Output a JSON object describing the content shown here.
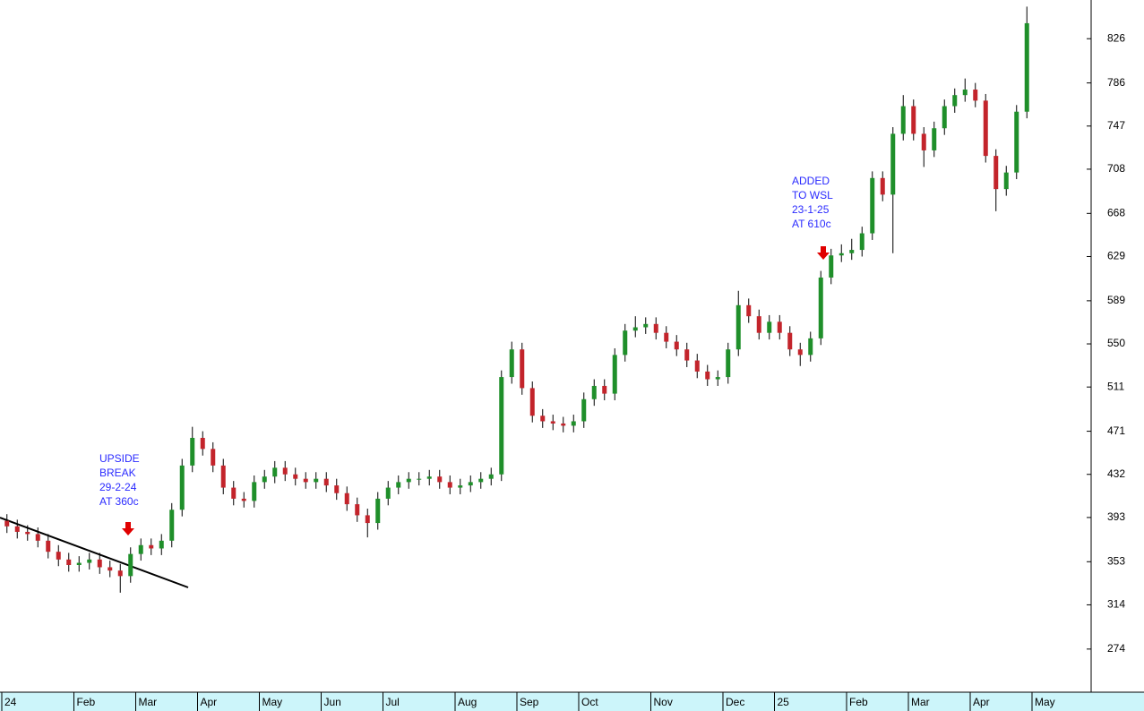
{
  "chart_data": {
    "type": "candlestick",
    "categories": [
      "24",
      null,
      null,
      null,
      null,
      null,
      null,
      "Feb",
      null,
      null,
      null,
      null,
      null,
      "Mar",
      null,
      null,
      null,
      null,
      null,
      "Apr",
      null,
      null,
      null,
      null,
      null,
      "May",
      null,
      null,
      null,
      null,
      null,
      "Jun",
      null,
      null,
      null,
      null,
      null,
      "Jul",
      null,
      null,
      null,
      null,
      null,
      null,
      "Aug",
      null,
      null,
      null,
      null,
      null,
      "Sep",
      null,
      null,
      null,
      null,
      null,
      "Oct",
      null,
      null,
      null,
      null,
      null,
      null,
      "Nov",
      null,
      null,
      null,
      null,
      null,
      null,
      "Dec",
      null,
      null,
      null,
      null,
      "25",
      null,
      null,
      null,
      null,
      null,
      null,
      "Feb",
      null,
      null,
      null,
      null,
      null,
      "Mar",
      null,
      null,
      null,
      null,
      null,
      "Apr",
      null,
      null,
      null,
      null,
      null,
      "May"
    ],
    "open": [
      390,
      385,
      380,
      378,
      372,
      362,
      355,
      350,
      352,
      355,
      348,
      345,
      340,
      360,
      368,
      365,
      372,
      400,
      440,
      465,
      455,
      440,
      420,
      410,
      408,
      425,
      430,
      438,
      432,
      428,
      425,
      428,
      422,
      415,
      405,
      395,
      388,
      410,
      420,
      425,
      428,
      428,
      430,
      425,
      420,
      422,
      425,
      428,
      432,
      520,
      545,
      510,
      485,
      480,
      478,
      476,
      480,
      500,
      512,
      505,
      540,
      562,
      565,
      568,
      560,
      552,
      545,
      535,
      525,
      518,
      520,
      545,
      585,
      575,
      560,
      570,
      560,
      545,
      540,
      555,
      610,
      630,
      632,
      635,
      650,
      700,
      685,
      740,
      765,
      740,
      725,
      745,
      765,
      775,
      780,
      770,
      720,
      690,
      705,
      760,
      null
    ],
    "high": [
      396,
      391,
      386,
      384,
      378,
      368,
      361,
      358,
      361,
      361,
      354,
      351,
      366,
      374,
      374,
      378,
      406,
      446,
      475,
      471,
      461,
      446,
      426,
      416,
      431,
      436,
      444,
      444,
      438,
      434,
      434,
      434,
      428,
      421,
      411,
      401,
      416,
      426,
      431,
      434,
      434,
      436,
      436,
      431,
      428,
      431,
      434,
      438,
      526,
      552,
      551,
      516,
      491,
      486,
      484,
      486,
      506,
      518,
      518,
      546,
      568,
      575,
      574,
      574,
      566,
      558,
      551,
      541,
      531,
      526,
      551,
      598,
      591,
      581,
      576,
      576,
      566,
      551,
      561,
      616,
      636,
      640,
      645,
      656,
      706,
      706,
      746,
      775,
      771,
      746,
      751,
      771,
      781,
      790,
      786,
      776,
      726,
      711,
      766,
      855,
      null
    ],
    "low": [
      379,
      374,
      372,
      366,
      356,
      349,
      344,
      344,
      346,
      342,
      339,
      325,
      334,
      354,
      359,
      359,
      366,
      394,
      434,
      449,
      434,
      414,
      404,
      402,
      402,
      419,
      424,
      426,
      422,
      419,
      419,
      416,
      409,
      399,
      389,
      375,
      382,
      404,
      414,
      419,
      422,
      422,
      419,
      414,
      414,
      416,
      419,
      422,
      426,
      514,
      504,
      479,
      474,
      472,
      470,
      470,
      474,
      494,
      499,
      499,
      534,
      556,
      559,
      554,
      546,
      539,
      529,
      519,
      512,
      512,
      514,
      539,
      569,
      554,
      554,
      554,
      539,
      530,
      534,
      549,
      604,
      624,
      626,
      629,
      644,
      679,
      632,
      734,
      734,
      710,
      719,
      739,
      759,
      769,
      764,
      714,
      670,
      684,
      699,
      754,
      null
    ],
    "close": [
      385,
      380,
      378,
      372,
      362,
      355,
      350,
      352,
      355,
      348,
      345,
      340,
      360,
      368,
      365,
      372,
      400,
      440,
      465,
      455,
      440,
      420,
      410,
      408,
      425,
      430,
      438,
      432,
      428,
      425,
      428,
      422,
      415,
      405,
      395,
      388,
      410,
      420,
      425,
      428,
      428,
      430,
      425,
      420,
      422,
      425,
      428,
      432,
      520,
      545,
      510,
      485,
      480,
      478,
      476,
      480,
      500,
      512,
      505,
      540,
      562,
      565,
      568,
      560,
      552,
      545,
      535,
      525,
      518,
      520,
      545,
      585,
      575,
      560,
      570,
      560,
      545,
      540,
      555,
      610,
      630,
      632,
      635,
      650,
      700,
      685,
      740,
      765,
      740,
      725,
      745,
      765,
      775,
      780,
      770,
      720,
      690,
      705,
      760,
      840,
      null
    ],
    "up_color": "#1f8f2a",
    "down_color": "#c3242b",
    "ylim": [
      235,
      861
    ],
    "yticks": [
      274,
      314,
      353,
      393,
      432,
      471,
      511,
      550,
      589,
      629,
      668,
      708,
      747,
      786,
      826
    ],
    "annotations": [
      {
        "lines": [
          "UPSIDE",
          "BREAK",
          "29-2-24",
          "AT 360c"
        ]
      },
      {
        "lines": [
          "ADDED",
          "TO WSL",
          "23-1-25",
          "AT 610c"
        ]
      }
    ]
  }
}
